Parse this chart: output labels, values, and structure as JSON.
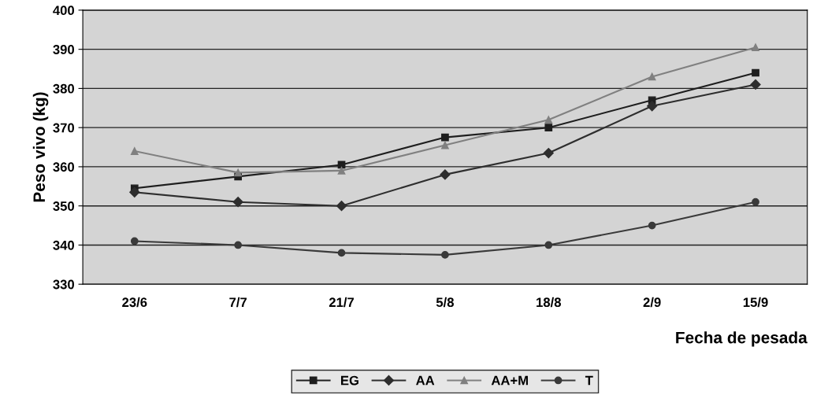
{
  "chart_data": {
    "type": "line",
    "xlabel": "Fecha de pesada",
    "ylabel": "Peso vivo (kg)",
    "categories": [
      "23/6",
      "7/7",
      "21/7",
      "5/8",
      "18/8",
      "2/9",
      "15/9"
    ],
    "series": [
      {
        "name": "EG",
        "color": "#1e1e1e",
        "marker": "square",
        "values": [
          354.5,
          357.5,
          360.5,
          367.5,
          370,
          377,
          384
        ]
      },
      {
        "name": "AA",
        "color": "#2e2e2e",
        "marker": "diamond",
        "values": [
          353.5,
          351,
          350,
          358,
          363.5,
          375.5,
          381
        ]
      },
      {
        "name": "AA+M",
        "color": "#808080",
        "marker": "triangle",
        "values": [
          364,
          358.5,
          359,
          365.5,
          372,
          383,
          390.5
        ]
      },
      {
        "name": "T",
        "color": "#3a3a3a",
        "marker": "circle",
        "values": [
          341,
          340,
          338,
          337.5,
          340,
          345,
          351
        ]
      }
    ],
    "ylim": [
      330,
      400
    ],
    "yticks": [
      330,
      340,
      350,
      360,
      370,
      380,
      390,
      400
    ],
    "grid": "y",
    "legend": "bottom",
    "line_style": "solid"
  }
}
